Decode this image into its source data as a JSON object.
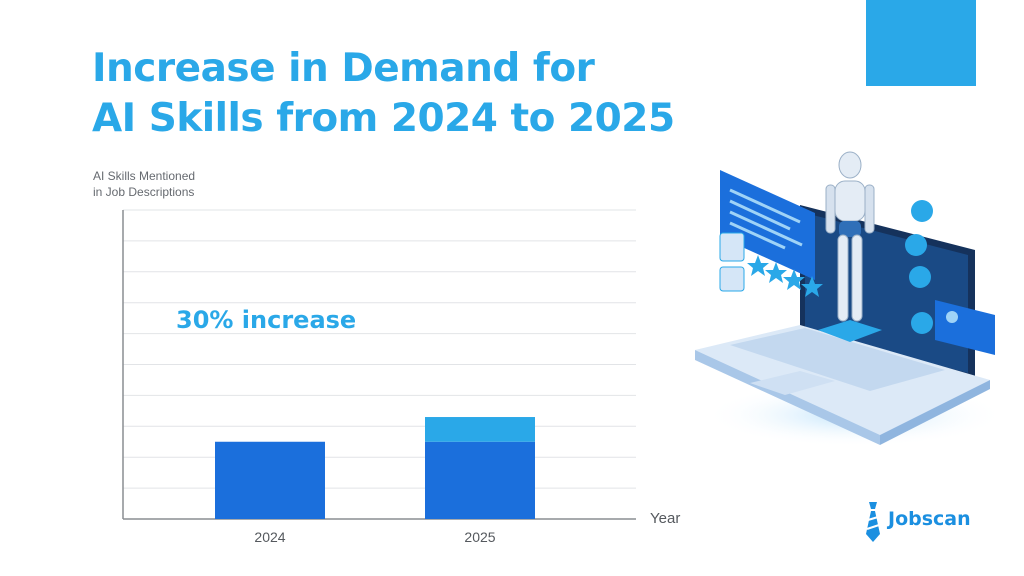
{
  "header": {
    "title_line1": "Increase in Demand for",
    "title_line2": "AI Skills from 2024 to 2025"
  },
  "brand": {
    "name": "Jobscan",
    "accent": "#2aa8e8",
    "primary": "#1b6fdc"
  },
  "chart_data": {
    "type": "bar",
    "ylabel_line1": "AI Skills Mentioned",
    "ylabel_line2": "in Job Descriptions",
    "xlabel": "Year",
    "categories": [
      "2024",
      "2025"
    ],
    "series": [
      {
        "values": [
          2.5,
          2.5
        ],
        "color": "#1b6fdc"
      },
      {
        "values": [
          0,
          0.8
        ],
        "color": "#2aa8e8"
      }
    ],
    "ylim": [
      0,
      10
    ],
    "grid": true,
    "annotation": "30% increase"
  }
}
